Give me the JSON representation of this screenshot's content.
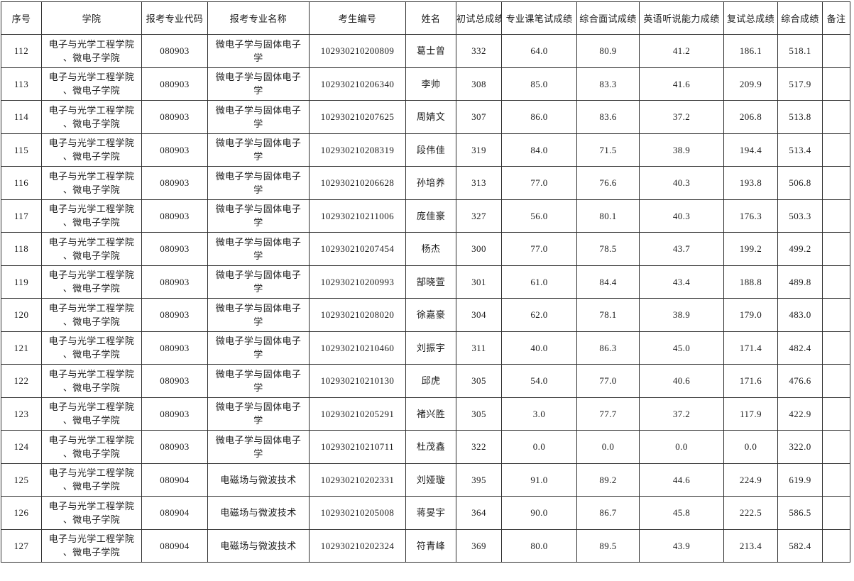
{
  "table": {
    "headers": [
      "序号",
      "学院",
      "报考专业代码",
      "报考专业名称",
      "考生编号",
      "姓名",
      "初试总成绩",
      "专业课笔试成绩",
      "综合面试成绩",
      "英语听说能力成绩",
      "复试总成绩",
      "综合成绩",
      "备注"
    ],
    "rows": [
      [
        "112",
        "电子与光学工程学院\n、微电子学院",
        "080903",
        "微电子学与固体电子\n学",
        "102930210200809",
        "葛士曾",
        "332",
        "64.0",
        "80.9",
        "41.2",
        "186.1",
        "518.1",
        ""
      ],
      [
        "113",
        "电子与光学工程学院\n、微电子学院",
        "080903",
        "微电子学与固体电子\n学",
        "102930210206340",
        "李帅",
        "308",
        "85.0",
        "83.3",
        "41.6",
        "209.9",
        "517.9",
        ""
      ],
      [
        "114",
        "电子与光学工程学院\n、微电子学院",
        "080903",
        "微电子学与固体电子\n学",
        "102930210207625",
        "周婧文",
        "307",
        "86.0",
        "83.6",
        "37.2",
        "206.8",
        "513.8",
        ""
      ],
      [
        "115",
        "电子与光学工程学院\n、微电子学院",
        "080903",
        "微电子学与固体电子\n学",
        "102930210208319",
        "段伟佳",
        "319",
        "84.0",
        "71.5",
        "38.9",
        "194.4",
        "513.4",
        ""
      ],
      [
        "116",
        "电子与光学工程学院\n、微电子学院",
        "080903",
        "微电子学与固体电子\n学",
        "102930210206628",
        "孙培养",
        "313",
        "77.0",
        "76.6",
        "40.3",
        "193.8",
        "506.8",
        ""
      ],
      [
        "117",
        "电子与光学工程学院\n、微电子学院",
        "080903",
        "微电子学与固体电子\n学",
        "102930210211006",
        "庞佳豪",
        "327",
        "56.0",
        "80.1",
        "40.3",
        "176.3",
        "503.3",
        ""
      ],
      [
        "118",
        "电子与光学工程学院\n、微电子学院",
        "080903",
        "微电子学与固体电子\n学",
        "102930210207454",
        "杨杰",
        "300",
        "77.0",
        "78.5",
        "43.7",
        "199.2",
        "499.2",
        ""
      ],
      [
        "119",
        "电子与光学工程学院\n、微电子学院",
        "080903",
        "微电子学与固体电子\n学",
        "102930210200993",
        "郜晓萱",
        "301",
        "61.0",
        "84.4",
        "43.4",
        "188.8",
        "489.8",
        ""
      ],
      [
        "120",
        "电子与光学工程学院\n、微电子学院",
        "080903",
        "微电子学与固体电子\n学",
        "102930210208020",
        "徐嘉豪",
        "304",
        "62.0",
        "78.1",
        "38.9",
        "179.0",
        "483.0",
        ""
      ],
      [
        "121",
        "电子与光学工程学院\n、微电子学院",
        "080903",
        "微电子学与固体电子\n学",
        "102930210210460",
        "刘振宇",
        "311",
        "40.0",
        "86.3",
        "45.0",
        "171.4",
        "482.4",
        ""
      ],
      [
        "122",
        "电子与光学工程学院\n、微电子学院",
        "080903",
        "微电子学与固体电子\n学",
        "102930210210130",
        "邱虎",
        "305",
        "54.0",
        "77.0",
        "40.6",
        "171.6",
        "476.6",
        ""
      ],
      [
        "123",
        "电子与光学工程学院\n、微电子学院",
        "080903",
        "微电子学与固体电子\n学",
        "102930210205291",
        "褚兴胜",
        "305",
        "3.0",
        "77.7",
        "37.2",
        "117.9",
        "422.9",
        ""
      ],
      [
        "124",
        "电子与光学工程学院\n、微电子学院",
        "080903",
        "微电子学与固体电子\n学",
        "102930210210711",
        "杜茂鑫",
        "322",
        "0.0",
        "0.0",
        "0.0",
        "0.0",
        "322.0",
        ""
      ],
      [
        "125",
        "电子与光学工程学院\n、微电子学院",
        "080904",
        "电磁场与微波技术",
        "102930210202331",
        "刘娅璇",
        "395",
        "91.0",
        "89.2",
        "44.6",
        "224.9",
        "619.9",
        ""
      ],
      [
        "126",
        "电子与光学工程学院\n、微电子学院",
        "080904",
        "电磁场与微波技术",
        "102930210205008",
        "蒋旻宇",
        "364",
        "90.0",
        "86.7",
        "45.8",
        "222.5",
        "586.5",
        ""
      ],
      [
        "127",
        "电子与光学工程学院\n、微电子学院",
        "080904",
        "电磁场与微波技术",
        "102930210202324",
        "符青峰",
        "369",
        "80.0",
        "89.5",
        "43.9",
        "213.4",
        "582.4",
        ""
      ]
    ]
  }
}
